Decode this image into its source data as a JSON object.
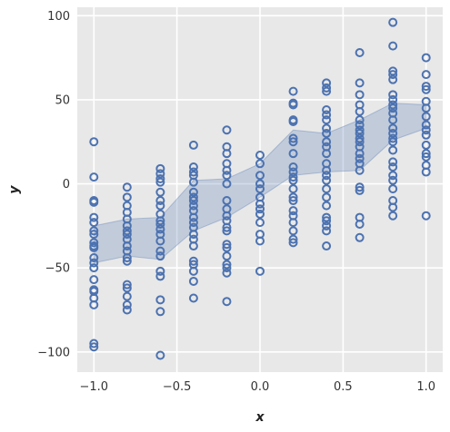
{
  "chart_data": {
    "type": "scatter",
    "title": "",
    "xlabel": "x",
    "ylabel": "y",
    "xlim": [
      -1.1,
      1.1
    ],
    "ylim": [
      -112,
      105
    ],
    "x_ticks": [
      -1.0,
      -0.5,
      0.0,
      0.5,
      1.0
    ],
    "x_tick_labels": [
      "−1.0",
      "−0.5",
      "0.0",
      "0.5",
      "1.0"
    ],
    "y_ticks": [
      -100,
      -50,
      0,
      50,
      100
    ],
    "y_tick_labels": [
      "−100",
      "−50",
      "0",
      "50",
      "100"
    ],
    "grid": true,
    "background": "#e8e8e8",
    "marker_color": "#4c72b0",
    "band_color": "#4c72b0",
    "band": {
      "x": [
        -1.0,
        -0.8,
        -0.6,
        -0.4,
        -0.2,
        0.0,
        0.2,
        0.4,
        0.6,
        0.8,
        1.0
      ],
      "upper": [
        -25,
        -21,
        -20,
        2,
        3,
        12,
        32,
        30,
        38,
        48,
        47
      ],
      "lower": [
        -47,
        -43,
        -45,
        -28,
        -20,
        -8,
        5,
        7,
        8,
        26,
        33
      ]
    },
    "series": [
      {
        "x": -1.0,
        "values": [
          25,
          4,
          -10,
          -11,
          -20,
          -23,
          -28,
          -30,
          -35,
          -37,
          -38,
          -44,
          -47,
          -50,
          -57,
          -63,
          -64,
          -68,
          -72,
          -95,
          -97
        ]
      },
      {
        "x": -0.8,
        "values": [
          -2,
          -8,
          -13,
          -17,
          -21,
          -25,
          -28,
          -30,
          -33,
          -37,
          -40,
          -44,
          -46,
          -60,
          -62,
          -67,
          -72,
          -75
        ]
      },
      {
        "x": -0.6,
        "values": [
          9,
          6,
          3,
          1,
          -5,
          -10,
          -13,
          -18,
          -22,
          -24,
          -27,
          -30,
          -34,
          -40,
          -43,
          -52,
          -55,
          -69,
          -76,
          -102
        ]
      },
      {
        "x": -0.4,
        "values": [
          23,
          10,
          7,
          5,
          1,
          -5,
          -8,
          -10,
          -13,
          -16,
          -20,
          -23,
          -26,
          -30,
          -33,
          -37,
          -46,
          -48,
          -52,
          -58,
          -68
        ]
      },
      {
        "x": -0.2,
        "values": [
          32,
          22,
          18,
          12,
          8,
          5,
          0,
          -10,
          -15,
          -19,
          -22,
          -26,
          -28,
          -36,
          -38,
          -43,
          -48,
          -50,
          -53,
          -70
        ]
      },
      {
        "x": 0.0,
        "values": [
          17,
          12,
          5,
          0,
          -3,
          -8,
          -12,
          -15,
          -18,
          -23,
          -30,
          -34,
          -52
        ]
      },
      {
        "x": 0.2,
        "values": [
          55,
          48,
          47,
          38,
          37,
          27,
          25,
          18,
          10,
          7,
          4,
          2,
          -3,
          -8,
          -10,
          -16,
          -19,
          -23,
          -28,
          -33,
          -35
        ]
      },
      {
        "x": 0.4,
        "values": [
          60,
          57,
          55,
          44,
          41,
          38,
          33,
          30,
          25,
          22,
          18,
          12,
          8,
          5,
          2,
          -3,
          -8,
          -13,
          -20,
          -22,
          -25,
          -28,
          -37
        ]
      },
      {
        "x": 0.6,
        "values": [
          78,
          60,
          53,
          47,
          43,
          38,
          35,
          32,
          30,
          27,
          25,
          22,
          18,
          15,
          12,
          8,
          -2,
          -4,
          -20,
          -24,
          -32
        ]
      },
      {
        "x": 0.8,
        "values": [
          96,
          82,
          67,
          65,
          62,
          53,
          50,
          47,
          45,
          42,
          38,
          33,
          30,
          27,
          25,
          20,
          13,
          10,
          5,
          2,
          -3,
          -10,
          -14,
          -19
        ]
      },
      {
        "x": 1.0,
        "values": [
          75,
          65,
          58,
          56,
          49,
          45,
          40,
          35,
          32,
          29,
          23,
          18,
          16,
          11,
          7,
          -19
        ]
      }
    ]
  }
}
